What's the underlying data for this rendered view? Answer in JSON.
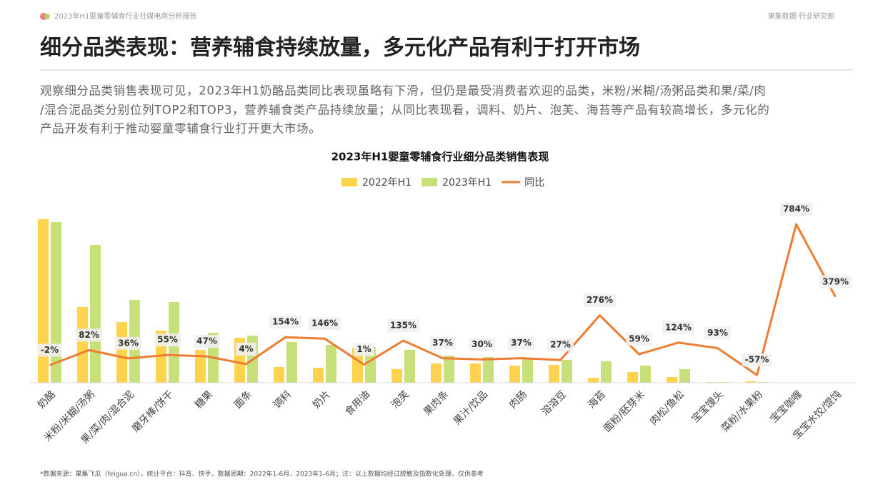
{
  "header": {
    "report": "2023年H1婴童零辅食行业社媒电商分析报告",
    "department": "果集数据·行业研究部"
  },
  "title": "细分品类表现：营养辅食持续放量，多元化产品有利于打开市场",
  "description": [
    "观察细分品类销售表现可见，2023年H1奶酪品类同比表现虽略有下滑，但仍是最受消费者欢迎的品类，米粉/米糊/汤粥品类和果/菜/肉",
    "/混合泥品类分别位列TOP2和TOP3，营养辅食类产品持续放量；从同比表现看，调料、奶片、泡芙、海苔等产品有较高增长，多元化的",
    "产品开发有利于推动婴童零辅食行业打开更大市场。"
  ],
  "footnote": "*数据来源：果集飞瓜（feigua.cn），统计平台：抖音、快手，数据周期：2022年1-6月，2023年1-6月；注：以上数据均经过脱敏及指数化处理，仅供参考",
  "chart_data": {
    "type": "bar_line",
    "title": "2023年H1婴童零辅食行业细分品类销售表现",
    "categories": [
      "奶酪",
      "米粉/米糊/汤粥",
      "果/菜/肉/混合泥",
      "磨牙棒/饼干",
      "糖果",
      "面条",
      "调料",
      "奶片",
      "食用油",
      "泡芙",
      "果肉条",
      "果汁/饮品",
      "肉肠",
      "溶溶豆",
      "海苔",
      "面粉/胚芽米",
      "肉松/鱼松",
      "宝宝馒头",
      "菜粉/水果粉",
      "宝宝咖喱",
      "宝宝水饺/馄饨"
    ],
    "series": [
      {
        "name": "2022年H1",
        "color": "#FFD34E",
        "values": [
          229,
          106,
          85,
          73,
          46,
          63,
          22,
          21,
          49,
          19,
          27,
          27,
          24,
          25,
          7,
          15,
          8,
          1,
          2,
          0.3,
          0.2
        ]
      },
      {
        "name": "2023年H1",
        "color": "#C8E07A",
        "values": [
          225,
          193,
          116,
          113,
          70,
          66,
          57,
          53,
          50,
          46,
          38,
          36,
          34,
          32,
          30,
          24,
          19,
          1,
          1,
          0.5,
          0.3
        ]
      },
      {
        "name": "同比",
        "color": "#ED7D31",
        "axis": "y2",
        "values": [
          -2,
          82,
          36,
          55,
          47,
          4,
          154,
          146,
          1,
          135,
          37,
          30,
          37,
          27,
          276,
          59,
          124,
          93,
          -57,
          784,
          379
        ],
        "value_labels": [
          "-2%",
          "82%",
          "36%",
          "55%",
          "47%",
          "4%",
          "154%",
          "146%",
          "1%",
          "135%",
          "37%",
          "30%",
          "37%",
          "27%",
          "276%",
          "59%",
          "124%",
          "93%",
          "-57%",
          "784%",
          "379%"
        ]
      }
    ],
    "ylim": [
      0,
      246
    ],
    "y2lim": [
      -100,
      880
    ]
  }
}
